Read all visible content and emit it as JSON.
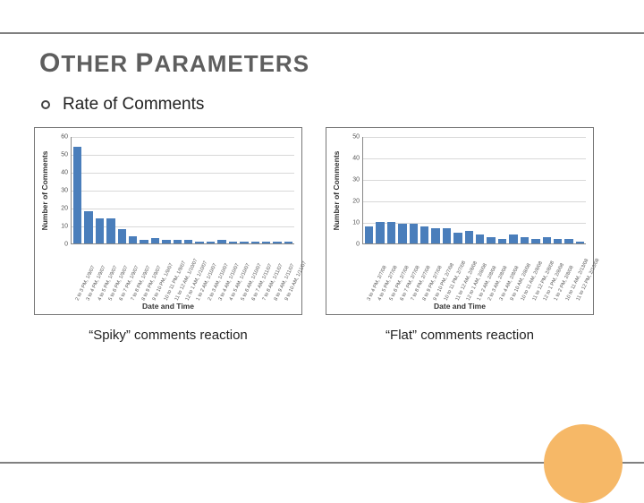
{
  "slide": {
    "title_first_letter_1": "O",
    "title_rest_1": "THER ",
    "title_first_letter_2": "P",
    "title_rest_2": "ARAMETERS",
    "bullet": "Rate of Comments",
    "rule_color": "#808080",
    "accent_circle_color": "#f6b867"
  },
  "left_chart": {
    "type": "bar",
    "caption": "“Spiky” comments reaction",
    "ylabel": "Number of Comments",
    "xlabel": "Date and Time",
    "bar_color": "#4a7ebb",
    "border_color": "#777777",
    "grid_color": "#d8d8d8",
    "background_color": "#ffffff",
    "label_fontsize": 8.5,
    "tick_fontsize": 7,
    "ylim": [
      0,
      60
    ],
    "yticks": [
      0,
      10,
      20,
      30,
      40,
      50,
      60
    ],
    "categories": [
      "2 to 3 PM, 1/9/07",
      "3 to 4 PM, 1/9/07",
      "4 to 5 PM, 1/9/07",
      "5 to 6 PM, 1/9/07",
      "6 to 7 PM, 1/9/07",
      "7 to 8 PM, 1/9/07",
      "8 to 9 PM, 1/9/07",
      "9 to 10 PM, 1/9/07",
      "10 to 11 PM, 1/9/07",
      "11 to 12 AM, 1/10/07",
      "12 to 1 AM, 1/10/07",
      "1 to 2 AM, 1/10/07",
      "2 to 3 AM, 1/10/07",
      "3 to 4 AM, 1/10/07",
      "4 to 5 AM, 1/10/07",
      "5 to 6 AM, 1/10/07",
      "6 to 7 AM, 1/11/07",
      "7 to 8 AM, 1/11/07",
      "8 to 9 AM, 1/11/07",
      "9 to 10 AM, 1/11/07"
    ],
    "values": [
      54,
      18,
      14,
      14,
      8,
      4,
      2,
      3,
      2,
      2,
      2,
      1,
      1,
      2,
      1,
      1,
      1,
      1,
      1,
      1
    ]
  },
  "right_chart": {
    "type": "bar",
    "caption": "“Flat” comments reaction",
    "ylabel": "Number of Comments",
    "xlabel": "Date and Time",
    "bar_color": "#4a7ebb",
    "border_color": "#777777",
    "grid_color": "#d8d8d8",
    "background_color": "#ffffff",
    "label_fontsize": 8.5,
    "tick_fontsize": 7,
    "ylim": [
      0,
      50
    ],
    "yticks": [
      0,
      10,
      20,
      30,
      40,
      50
    ],
    "categories": [
      "3 to 4 PM, 2/7/08",
      "4 to 5 PM, 2/7/08",
      "5 to 6 PM, 2/7/08",
      "6 to 7 PM, 2/7/08",
      "7 to 8 PM, 2/7/08",
      "8 to 9 PM, 2/7/08",
      "9 to 10 PM, 2/7/08",
      "10 to 11 PM, 2/7/08",
      "11 to 12 AM, 2/8/08",
      "12 to 1 AM, 2/8/08",
      "1 to 2 AM, 2/8/08",
      "2 to 3 AM, 2/8/08",
      "3 to 4 AM, 2/8/08",
      "9 to 10 AM, 2/8/08",
      "10 to 11 AM, 2/8/08",
      "11 to 12 PM, 2/8/08",
      "12 to 1 PM, 2/8/08",
      "1 to 2 PM, 2/8/08",
      "10 to 11 AM, 2/13/08",
      "11 to 12 PM, 2/13/08"
    ],
    "values": [
      8,
      10,
      10,
      9,
      9,
      8,
      7,
      7,
      5,
      6,
      4,
      3,
      2,
      4,
      3,
      2,
      3,
      2,
      2,
      1
    ]
  }
}
